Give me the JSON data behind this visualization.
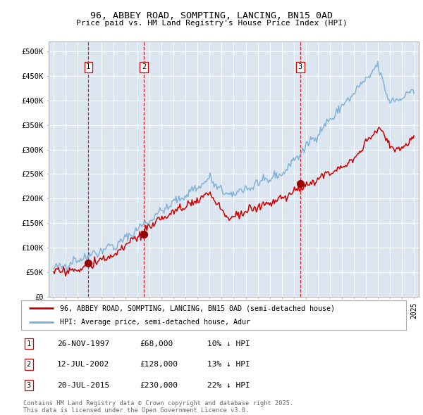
{
  "title": "96, ABBEY ROAD, SOMPTING, LANCING, BN15 0AD",
  "subtitle": "Price paid vs. HM Land Registry's House Price Index (HPI)",
  "xlim": [
    1994.6,
    2025.4
  ],
  "ylim": [
    0,
    520000
  ],
  "yticks": [
    0,
    50000,
    100000,
    150000,
    200000,
    250000,
    300000,
    350000,
    400000,
    450000,
    500000
  ],
  "ytick_labels": [
    "£0",
    "£50K",
    "£100K",
    "£150K",
    "£200K",
    "£250K",
    "£300K",
    "£350K",
    "£400K",
    "£450K",
    "£500K"
  ],
  "sale_dates": [
    1997.9,
    2002.53,
    2015.54
  ],
  "sale_prices": [
    68000,
    128000,
    230000
  ],
  "sale_labels": [
    "1",
    "2",
    "3"
  ],
  "vline_color": "#cc0000",
  "sale_marker_color": "#990000",
  "red_line_color": "#cc0000",
  "blue_line_color": "#7aadd4",
  "legend_label_red": "96, ABBEY ROAD, SOMPTING, LANCING, BN15 0AD (semi-detached house)",
  "legend_label_blue": "HPI: Average price, semi-detached house, Adur",
  "table_rows": [
    [
      "1",
      "26-NOV-1997",
      "£68,000",
      "10% ↓ HPI"
    ],
    [
      "2",
      "12-JUL-2002",
      "£128,000",
      "13% ↓ HPI"
    ],
    [
      "3",
      "20-JUL-2015",
      "£230,000",
      "22% ↓ HPI"
    ]
  ],
  "footer_text": "Contains HM Land Registry data © Crown copyright and database right 2025.\nThis data is licensed under the Open Government Licence v3.0.",
  "background_color": "#dce6f0",
  "plot_bg_color": "#dce6f0"
}
